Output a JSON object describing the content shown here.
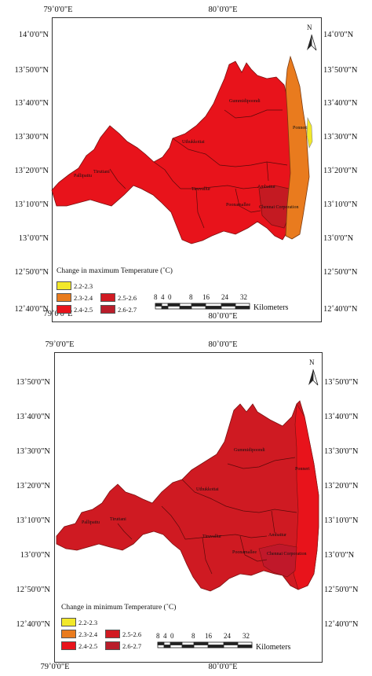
{
  "maps": [
    {
      "legend_title": "Change in maximum Temperature (˚C)",
      "lat_labels": [
        "14˚0'0\"N",
        "13˚50'0\"N",
        "13˚40'0\"N",
        "13˚30'0\"N",
        "13˚20'0\"N",
        "13˚10'0\"N",
        "13˚0'0\"N",
        "12˚50'0\"N",
        "12˚40'0\"N"
      ],
      "lon_labels": [
        "79˚0'0\"E",
        "80˚0'0\"E"
      ],
      "places": [
        "Gummidipoondi",
        "Ponneri",
        "Uthukkottai",
        "Tiruttani",
        "Pallipattu",
        "Tiruvallur",
        "Ambattur",
        "Poonamallee",
        "Chennai Corporation"
      ]
    },
    {
      "legend_title": "Change in minimum Temperature (˚C)",
      "lat_labels": [
        "13˚50'0\"N",
        "13˚40'0\"N",
        "13˚30'0\"N",
        "13˚20'0\"N",
        "13˚10'0\"N",
        "13˚0'0\"N",
        "12˚50'0\"N",
        "12˚40'0\"N"
      ],
      "lon_labels": [
        "79˚0'0\"E",
        "80˚0'0\"E"
      ],
      "places": [
        "Gummidipoondi",
        "Ponneri",
        "Uthukkottai",
        "Tiruttani",
        "Pallipattu",
        "Tiruvallur",
        "Ambattur",
        "Poonamallee",
        "Chennai Corporation"
      ]
    }
  ],
  "legend": [
    {
      "label": "2.2-2.3",
      "color": "#f2e82a"
    },
    {
      "label": "2.3-2.4",
      "color": "#e97b1e"
    },
    {
      "label": "2.4-2.5",
      "color": "#e8131b"
    },
    {
      "label": "2.5-2.6",
      "color": "#d11a22"
    },
    {
      "label": "2.6-2.7",
      "color": "#b91d2a"
    }
  ],
  "scale": {
    "ticks": [
      "8",
      "4",
      "0",
      "8",
      "16",
      "24",
      "32"
    ],
    "unit": "Kilometers"
  },
  "north_label": "N"
}
